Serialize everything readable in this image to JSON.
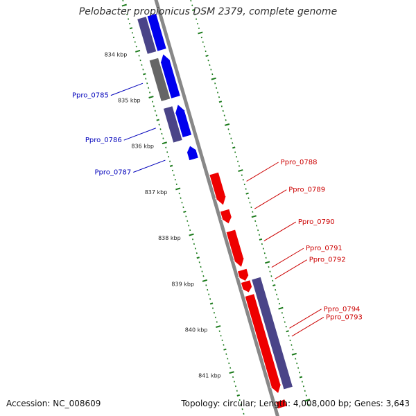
{
  "title": "Pelobacter propionicus DSM 2379, complete genome",
  "footer": {
    "accession": "Accession: NC_008609",
    "summary": "Topology: circular; Length: 4,008,000 bp; Genes: 3,643"
  },
  "colors": {
    "forward_gene": "#0000ee",
    "reverse_gene": "#ee0000",
    "other_gene": "#4a4488",
    "grey_gene": "#666666",
    "tick": "#1a7a1a",
    "backbone": "#888888",
    "label_forward": "#0000bb",
    "label_reverse": "#cc0000"
  },
  "axis_labels": [
    {
      "text": "834 kbp",
      "kbp": 834
    },
    {
      "text": "835 kbp",
      "kbp": 835
    },
    {
      "text": "836 kbp",
      "kbp": 836
    },
    {
      "text": "837 kbp",
      "kbp": 837
    },
    {
      "text": "838 kbp",
      "kbp": 838
    },
    {
      "text": "839 kbp",
      "kbp": 839
    },
    {
      "text": "840 kbp",
      "kbp": 840
    },
    {
      "text": "841 kbp",
      "kbp": 841
    }
  ],
  "genes": [
    {
      "label": "",
      "track": "outer2",
      "start": 833.35,
      "end": 834.12,
      "color": "other_gene",
      "arrow": false
    },
    {
      "label": "",
      "track": "outer1",
      "start": 833.35,
      "end": 834.12,
      "color": "forward_gene",
      "arrow": false
    },
    {
      "label": "",
      "track": "outer2",
      "start": 834.25,
      "end": 835.15,
      "color": "grey_gene",
      "arrow": false
    },
    {
      "label": "Ppro_0785",
      "track": "outer1",
      "start": 834.2,
      "end": 835.15,
      "color": "forward_gene",
      "arrow": true
    },
    {
      "label": "",
      "track": "outer2",
      "start": 835.3,
      "end": 836.05,
      "color": "other_gene",
      "arrow": false
    },
    {
      "label": "Ppro_0786",
      "track": "outer1",
      "start": 835.3,
      "end": 836.0,
      "color": "forward_gene",
      "arrow": true
    },
    {
      "label": "Ppro_0787",
      "track": "outer1",
      "start": 836.2,
      "end": 836.5,
      "color": "forward_gene",
      "arrow": true
    },
    {
      "label": "Ppro_0788",
      "track": "inner1",
      "start": 836.9,
      "end": 837.6,
      "color": "reverse_gene",
      "arrow": true
    },
    {
      "label": "Ppro_0789",
      "track": "inner1",
      "start": 837.7,
      "end": 838.0,
      "color": "reverse_gene",
      "arrow": true
    },
    {
      "label": "Ppro_0790",
      "track": "inner1",
      "start": 838.15,
      "end": 838.95,
      "color": "reverse_gene",
      "arrow": true
    },
    {
      "label": "Ppro_0791",
      "track": "inner1",
      "start": 839.0,
      "end": 839.25,
      "color": "reverse_gene",
      "arrow": true
    },
    {
      "label": "Ppro_0792",
      "track": "inner1",
      "start": 839.25,
      "end": 839.5,
      "color": "reverse_gene",
      "arrow": true
    },
    {
      "label": "Ppro_0793",
      "track": "inner1",
      "start": 839.55,
      "end": 841.7,
      "color": "reverse_gene",
      "arrow": true
    },
    {
      "label": "Ppro_0794",
      "track": "inner2",
      "start": 839.25,
      "end": 841.65,
      "color": "other_gene",
      "arrow": false
    },
    {
      "label": "",
      "track": "inner1",
      "start": 841.85,
      "end": 842.0,
      "color": "reverse_gene",
      "arrow": false
    }
  ]
}
